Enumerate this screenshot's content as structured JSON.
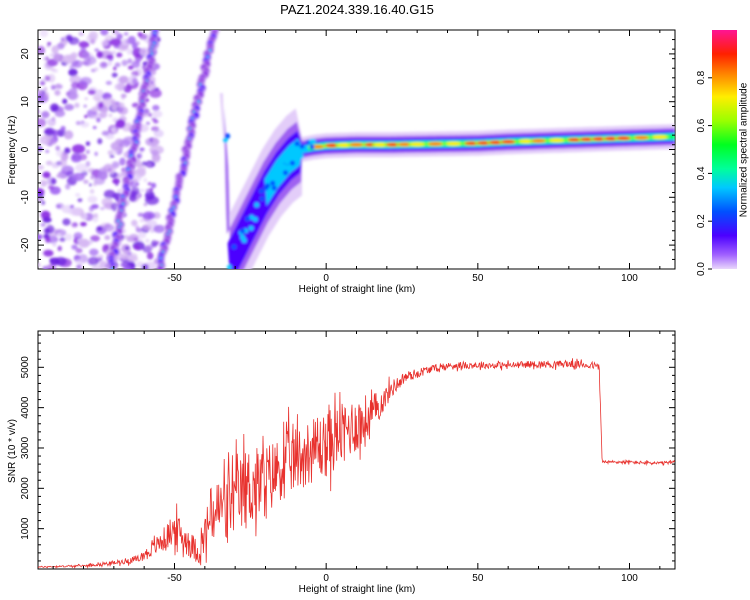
{
  "title": "PAZ1.2024.339.16.40.G15",
  "chart_data": [
    {
      "type": "heatmap",
      "xlabel": "Height of straight line (km)",
      "ylabel": "Frequency (Hz)",
      "xlim": [
        -95,
        115
      ],
      "ylim": [
        -25,
        25
      ],
      "xticks": [
        -50,
        0,
        50,
        100
      ],
      "yticks": [
        -20,
        -10,
        0,
        10,
        20
      ],
      "colorbar": {
        "label": "Normalized spectral amplitude",
        "range": [
          0,
          1
        ],
        "ticks": [
          "0.0",
          "0.2",
          "0.4",
          "0.6",
          "0.8"
        ],
        "tick_values": [
          0,
          0.2,
          0.4,
          0.6,
          0.8
        ],
        "colormap": [
          "#d6b8f2",
          "#8a2be2",
          "#4b00ff",
          "#0050ff",
          "#00e5ff",
          "#00ff6a",
          "#9aff00",
          "#ffee00",
          "#ff8000",
          "#ff2000",
          "#ff1493"
        ]
      },
      "ridge": {
        "x": [
          -32,
          -28,
          -24,
          -20,
          -16,
          -12,
          -8,
          -4,
          0,
          10,
          20,
          30,
          40,
          50,
          60,
          70,
          80,
          90,
          100,
          110,
          115
        ],
        "y": [
          -24,
          -19,
          -14,
          -9,
          -5,
          -2,
          0,
          0.5,
          0.8,
          1.0,
          1.0,
          1.1,
          1.2,
          1.3,
          1.6,
          1.8,
          2.0,
          2.2,
          2.4,
          2.6,
          2.7
        ]
      },
      "ghost_tracks": [
        {
          "x": [
            -56,
            -71
          ],
          "y": [
            25,
            -25
          ]
        },
        {
          "x": [
            -37,
            -55
          ],
          "y": [
            25,
            -25
          ]
        }
      ]
    },
    {
      "type": "line",
      "xlabel": "Height of straight line (km)",
      "ylabel": "SNR (10 * v/v)",
      "xlim": [
        -95,
        115
      ],
      "ylim": [
        0,
        5900
      ],
      "xticks": [
        -50,
        0,
        50,
        100
      ],
      "yticks": [
        1000,
        2000,
        3000,
        4000,
        5000
      ],
      "color": "#e8322e",
      "series": [
        {
          "x": [
            -95,
            -80,
            -70,
            -62,
            -58,
            -54,
            -50,
            -46,
            -42,
            -38,
            -34,
            -30,
            -26,
            -22,
            -18,
            -14,
            -10,
            -6,
            -2,
            2,
            6,
            10,
            14,
            18,
            22,
            26,
            30,
            34,
            38,
            42,
            46,
            50,
            60,
            70,
            80,
            88,
            90,
            91,
            100,
            110,
            115
          ],
          "values": [
            50,
            80,
            150,
            250,
            450,
            700,
            1000,
            700,
            400,
            1300,
            1600,
            1700,
            2000,
            2100,
            2300,
            2600,
            2700,
            2900,
            3000,
            3200,
            3400,
            3600,
            3700,
            4100,
            4500,
            4750,
            4850,
            4950,
            5000,
            5050,
            5050,
            5050,
            5050,
            5080,
            5080,
            5050,
            5000,
            2650,
            2650,
            2620,
            2650
          ],
          "noise_envelope": [
            20,
            30,
            60,
            120,
            200,
            350,
            500,
            450,
            350,
            900,
            1000,
            1100,
            1300,
            1200,
            1100,
            1000,
            1000,
            1000,
            1000,
            1000,
            900,
            900,
            800,
            400,
            250,
            180,
            150,
            120,
            110,
            110,
            110,
            100,
            100,
            110,
            110,
            110,
            110,
            50,
            50,
            50,
            50
          ]
        }
      ]
    }
  ]
}
